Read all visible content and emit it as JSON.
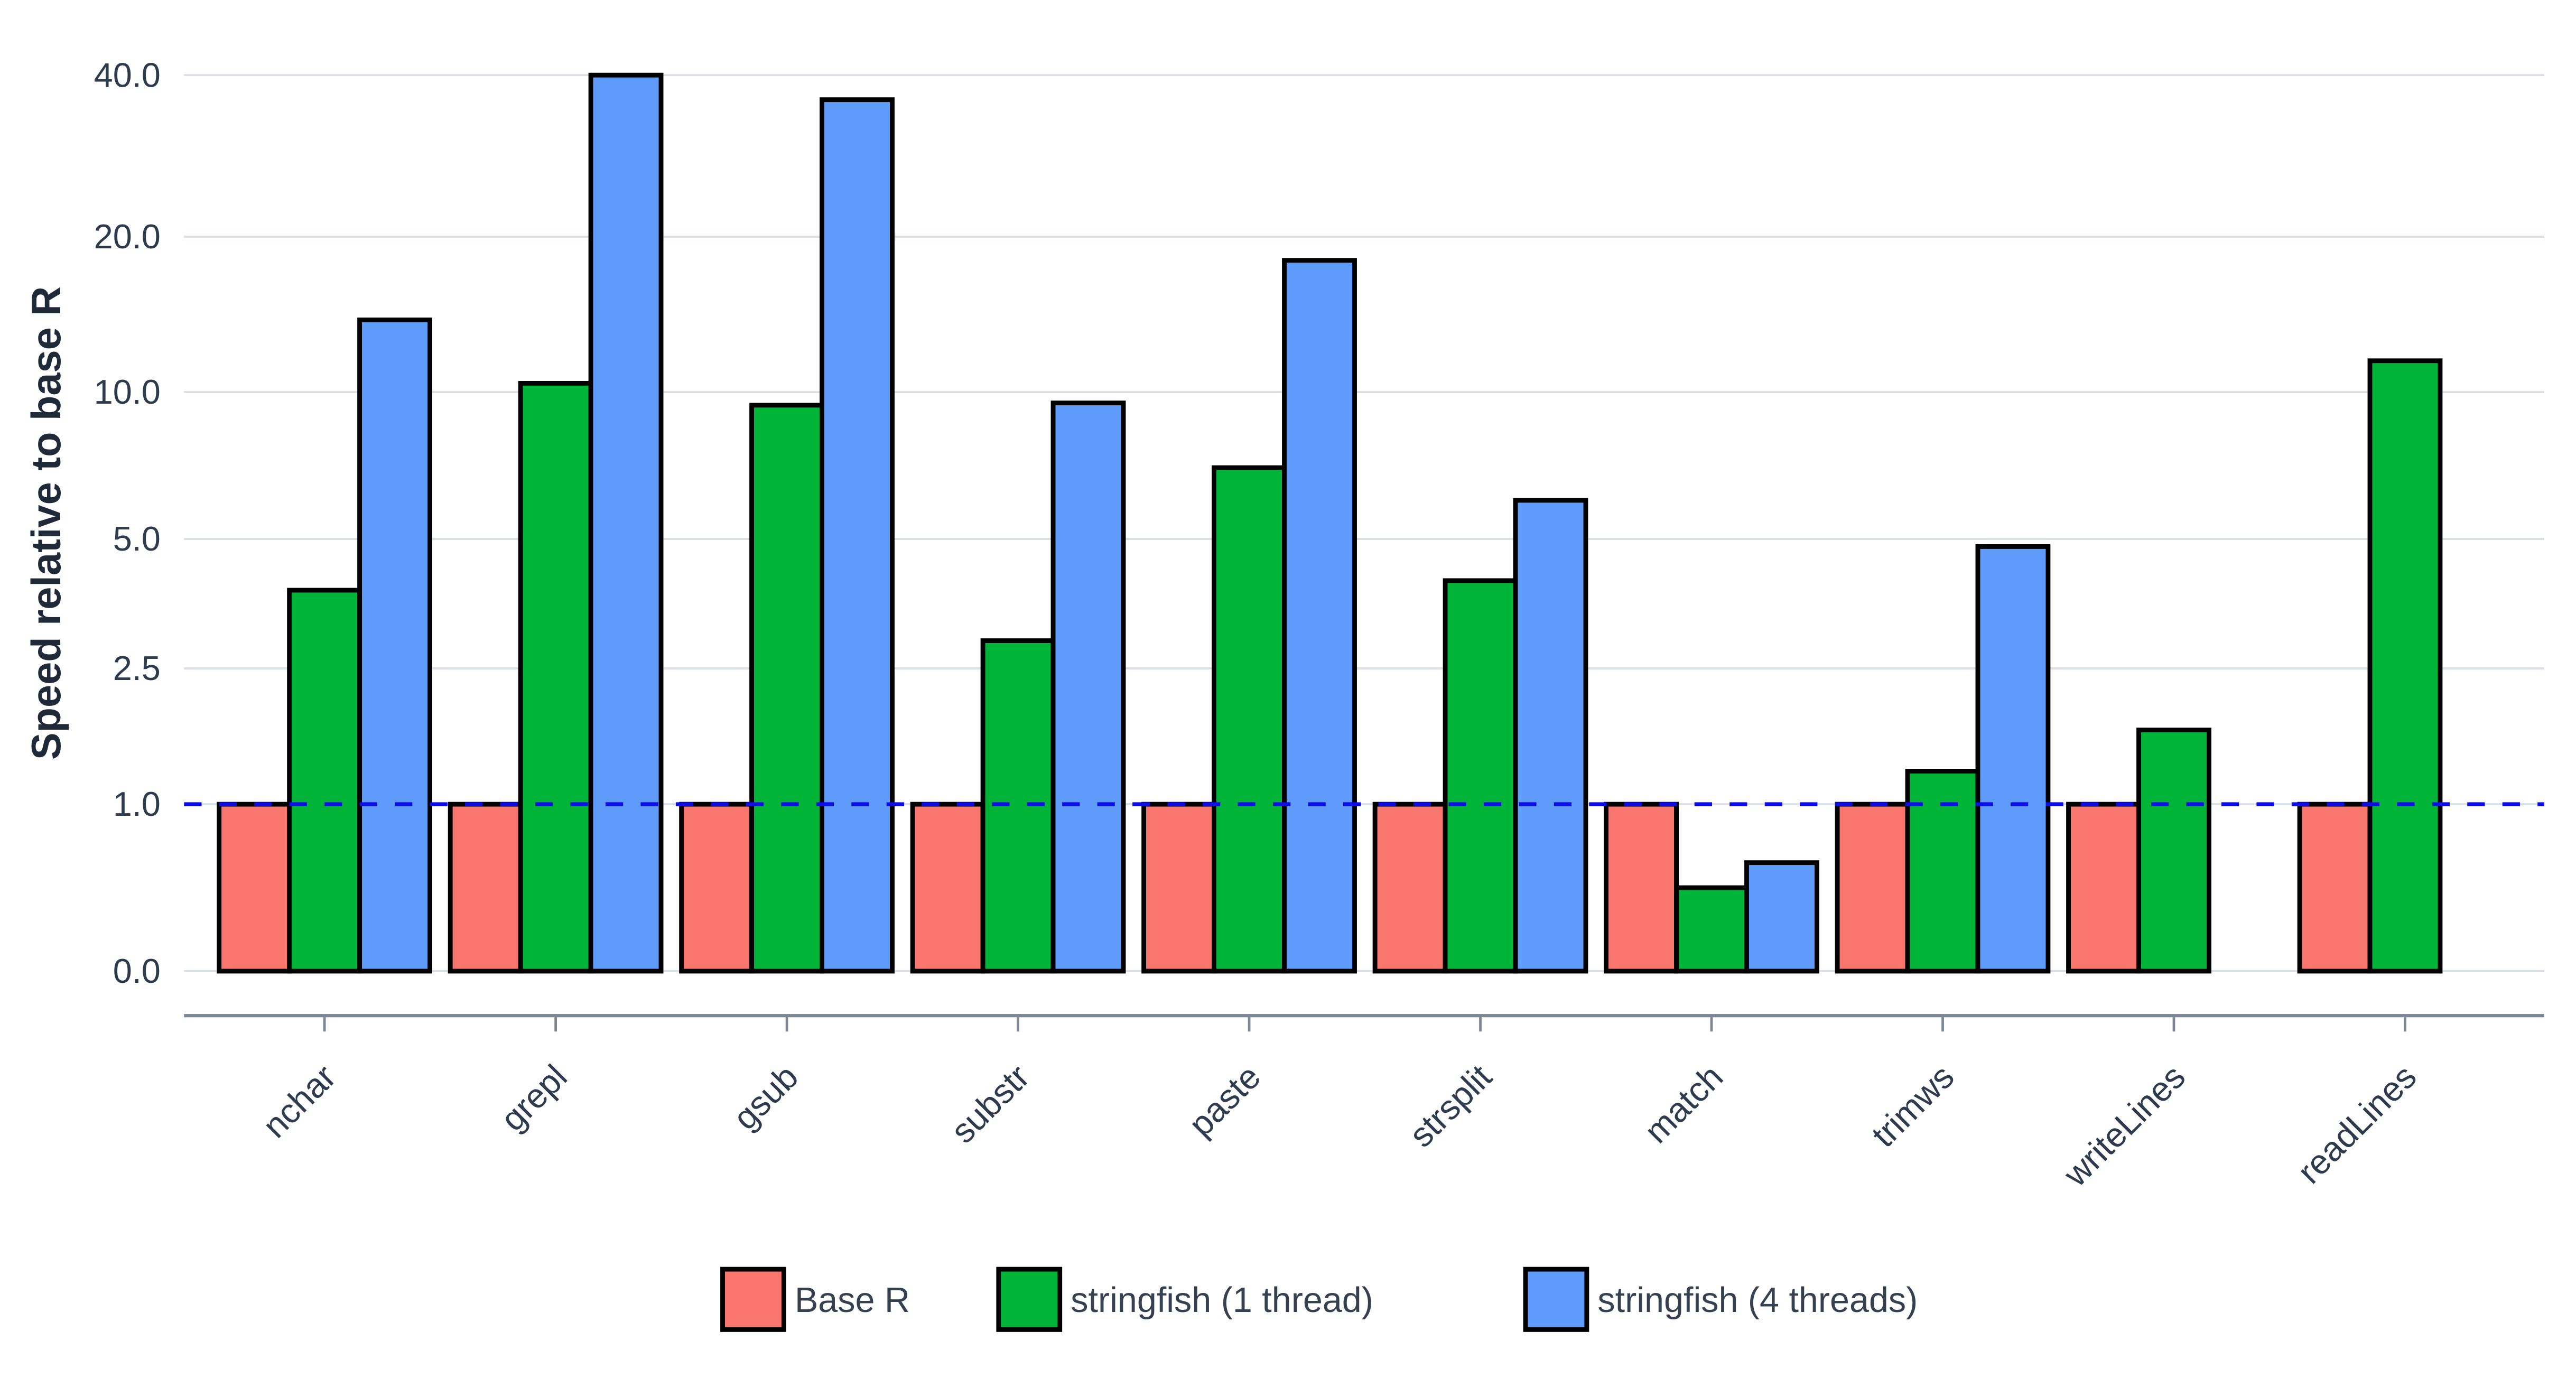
{
  "chart_data": {
    "type": "bar",
    "title": "",
    "xlabel": "",
    "ylabel": "Speed relative to base R",
    "scale": "pseudo-log",
    "categories": [
      "nchar",
      "grepl",
      "gsub",
      "substr",
      "paste",
      "strsplit",
      "match",
      "trimws",
      "writeLines",
      "readLines"
    ],
    "series": [
      {
        "name": "Base R",
        "color": "#f8766d",
        "values": [
          1,
          1,
          1,
          1,
          1,
          1,
          1,
          1,
          1,
          1
        ]
      },
      {
        "name": "stringfish (1 thread)",
        "color": "#00b438",
        "values": [
          3.8,
          10.4,
          9.4,
          2.9,
          7,
          4,
          0.5,
          1.25,
          1.65,
          11.5
        ]
      },
      {
        "name": "stringfish (4 threads)",
        "color": "#5e9bfa",
        "values": [
          13.8,
          40,
          36,
          9.5,
          18,
          6,
          0.65,
          4.8,
          null,
          null
        ]
      }
    ],
    "y_ticks": [
      {
        "value": 40,
        "label": "40.0"
      },
      {
        "value": 20,
        "label": "20.0"
      },
      {
        "value": 10,
        "label": "10.0"
      },
      {
        "value": 5,
        "label": "5.0"
      },
      {
        "value": 2.5,
        "label": "2.5"
      },
      {
        "value": 1,
        "label": "1.0"
      },
      {
        "value": 0,
        "label": "0.0"
      }
    ],
    "reference_line": {
      "value": 1.0,
      "color": "#0d0de8",
      "style": "dashed"
    },
    "legend_position": "bottom",
    "grid": "horizontal",
    "ylim": [
      0,
      40
    ]
  }
}
